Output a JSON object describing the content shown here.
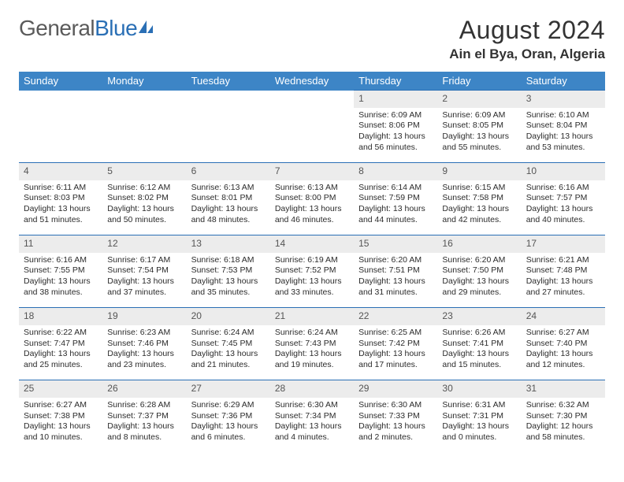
{
  "logo": {
    "part1": "General",
    "part2": "Blue"
  },
  "title": "August 2024",
  "location": "Ain el Bya, Oran, Algeria",
  "colors": {
    "header_bg": "#3d85c6",
    "header_fg": "#ffffff",
    "daynum_bg": "#ececec",
    "rule": "#2a6fb5",
    "text": "#2b2b2b"
  },
  "weekdays": [
    "Sunday",
    "Monday",
    "Tuesday",
    "Wednesday",
    "Thursday",
    "Friday",
    "Saturday"
  ],
  "weeks": [
    [
      null,
      null,
      null,
      null,
      {
        "n": "1",
        "sr": "Sunrise: 6:09 AM",
        "ss": "Sunset: 8:06 PM",
        "d1": "Daylight: 13 hours",
        "d2": "and 56 minutes."
      },
      {
        "n": "2",
        "sr": "Sunrise: 6:09 AM",
        "ss": "Sunset: 8:05 PM",
        "d1": "Daylight: 13 hours",
        "d2": "and 55 minutes."
      },
      {
        "n": "3",
        "sr": "Sunrise: 6:10 AM",
        "ss": "Sunset: 8:04 PM",
        "d1": "Daylight: 13 hours",
        "d2": "and 53 minutes."
      }
    ],
    [
      {
        "n": "4",
        "sr": "Sunrise: 6:11 AM",
        "ss": "Sunset: 8:03 PM",
        "d1": "Daylight: 13 hours",
        "d2": "and 51 minutes."
      },
      {
        "n": "5",
        "sr": "Sunrise: 6:12 AM",
        "ss": "Sunset: 8:02 PM",
        "d1": "Daylight: 13 hours",
        "d2": "and 50 minutes."
      },
      {
        "n": "6",
        "sr": "Sunrise: 6:13 AM",
        "ss": "Sunset: 8:01 PM",
        "d1": "Daylight: 13 hours",
        "d2": "and 48 minutes."
      },
      {
        "n": "7",
        "sr": "Sunrise: 6:13 AM",
        "ss": "Sunset: 8:00 PM",
        "d1": "Daylight: 13 hours",
        "d2": "and 46 minutes."
      },
      {
        "n": "8",
        "sr": "Sunrise: 6:14 AM",
        "ss": "Sunset: 7:59 PM",
        "d1": "Daylight: 13 hours",
        "d2": "and 44 minutes."
      },
      {
        "n": "9",
        "sr": "Sunrise: 6:15 AM",
        "ss": "Sunset: 7:58 PM",
        "d1": "Daylight: 13 hours",
        "d2": "and 42 minutes."
      },
      {
        "n": "10",
        "sr": "Sunrise: 6:16 AM",
        "ss": "Sunset: 7:57 PM",
        "d1": "Daylight: 13 hours",
        "d2": "and 40 minutes."
      }
    ],
    [
      {
        "n": "11",
        "sr": "Sunrise: 6:16 AM",
        "ss": "Sunset: 7:55 PM",
        "d1": "Daylight: 13 hours",
        "d2": "and 38 minutes."
      },
      {
        "n": "12",
        "sr": "Sunrise: 6:17 AM",
        "ss": "Sunset: 7:54 PM",
        "d1": "Daylight: 13 hours",
        "d2": "and 37 minutes."
      },
      {
        "n": "13",
        "sr": "Sunrise: 6:18 AM",
        "ss": "Sunset: 7:53 PM",
        "d1": "Daylight: 13 hours",
        "d2": "and 35 minutes."
      },
      {
        "n": "14",
        "sr": "Sunrise: 6:19 AM",
        "ss": "Sunset: 7:52 PM",
        "d1": "Daylight: 13 hours",
        "d2": "and 33 minutes."
      },
      {
        "n": "15",
        "sr": "Sunrise: 6:20 AM",
        "ss": "Sunset: 7:51 PM",
        "d1": "Daylight: 13 hours",
        "d2": "and 31 minutes."
      },
      {
        "n": "16",
        "sr": "Sunrise: 6:20 AM",
        "ss": "Sunset: 7:50 PM",
        "d1": "Daylight: 13 hours",
        "d2": "and 29 minutes."
      },
      {
        "n": "17",
        "sr": "Sunrise: 6:21 AM",
        "ss": "Sunset: 7:48 PM",
        "d1": "Daylight: 13 hours",
        "d2": "and 27 minutes."
      }
    ],
    [
      {
        "n": "18",
        "sr": "Sunrise: 6:22 AM",
        "ss": "Sunset: 7:47 PM",
        "d1": "Daylight: 13 hours",
        "d2": "and 25 minutes."
      },
      {
        "n": "19",
        "sr": "Sunrise: 6:23 AM",
        "ss": "Sunset: 7:46 PM",
        "d1": "Daylight: 13 hours",
        "d2": "and 23 minutes."
      },
      {
        "n": "20",
        "sr": "Sunrise: 6:24 AM",
        "ss": "Sunset: 7:45 PM",
        "d1": "Daylight: 13 hours",
        "d2": "and 21 minutes."
      },
      {
        "n": "21",
        "sr": "Sunrise: 6:24 AM",
        "ss": "Sunset: 7:43 PM",
        "d1": "Daylight: 13 hours",
        "d2": "and 19 minutes."
      },
      {
        "n": "22",
        "sr": "Sunrise: 6:25 AM",
        "ss": "Sunset: 7:42 PM",
        "d1": "Daylight: 13 hours",
        "d2": "and 17 minutes."
      },
      {
        "n": "23",
        "sr": "Sunrise: 6:26 AM",
        "ss": "Sunset: 7:41 PM",
        "d1": "Daylight: 13 hours",
        "d2": "and 15 minutes."
      },
      {
        "n": "24",
        "sr": "Sunrise: 6:27 AM",
        "ss": "Sunset: 7:40 PM",
        "d1": "Daylight: 13 hours",
        "d2": "and 12 minutes."
      }
    ],
    [
      {
        "n": "25",
        "sr": "Sunrise: 6:27 AM",
        "ss": "Sunset: 7:38 PM",
        "d1": "Daylight: 13 hours",
        "d2": "and 10 minutes."
      },
      {
        "n": "26",
        "sr": "Sunrise: 6:28 AM",
        "ss": "Sunset: 7:37 PM",
        "d1": "Daylight: 13 hours",
        "d2": "and 8 minutes."
      },
      {
        "n": "27",
        "sr": "Sunrise: 6:29 AM",
        "ss": "Sunset: 7:36 PM",
        "d1": "Daylight: 13 hours",
        "d2": "and 6 minutes."
      },
      {
        "n": "28",
        "sr": "Sunrise: 6:30 AM",
        "ss": "Sunset: 7:34 PM",
        "d1": "Daylight: 13 hours",
        "d2": "and 4 minutes."
      },
      {
        "n": "29",
        "sr": "Sunrise: 6:30 AM",
        "ss": "Sunset: 7:33 PM",
        "d1": "Daylight: 13 hours",
        "d2": "and 2 minutes."
      },
      {
        "n": "30",
        "sr": "Sunrise: 6:31 AM",
        "ss": "Sunset: 7:31 PM",
        "d1": "Daylight: 13 hours",
        "d2": "and 0 minutes."
      },
      {
        "n": "31",
        "sr": "Sunrise: 6:32 AM",
        "ss": "Sunset: 7:30 PM",
        "d1": "Daylight: 12 hours",
        "d2": "and 58 minutes."
      }
    ]
  ]
}
